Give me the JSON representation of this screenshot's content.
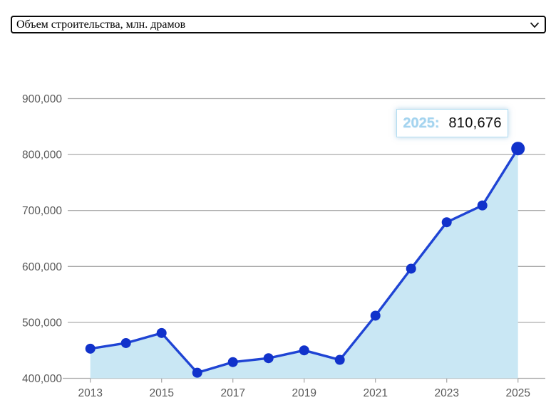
{
  "select": {
    "value": "Объем строительства, млн. драмов"
  },
  "tooltip": {
    "year_label": "2025:",
    "value": "810,676"
  },
  "colors": {
    "line": "#1f44d4",
    "point": "#1132cb",
    "area_fill": "#c9e7f4",
    "gridline": "#ababab",
    "axis_label": "#595959",
    "tooltip_border": "#b3def2",
    "tooltip_year": "#a4d4ef",
    "tooltip_value": "#0d0d0d",
    "select_border": "#0a0a0a"
  },
  "chart_data": {
    "type": "area",
    "title": "",
    "series_name": "Объем строительства, млн. драмов",
    "x": [
      2013,
      2014,
      2015,
      2016,
      2017,
      2018,
      2019,
      2020,
      2021,
      2022,
      2023,
      2024,
      2025
    ],
    "values": [
      453000,
      463000,
      481000,
      410000,
      429000,
      436000,
      450000,
      433000,
      512000,
      596000,
      679000,
      709000,
      810676
    ],
    "xlabel": "",
    "ylabel": "",
    "ylim": [
      400000,
      900000
    ],
    "ytick_values": [
      400000,
      500000,
      600000,
      700000,
      800000,
      900000
    ],
    "ytick_labels": [
      "400,000",
      "500,000",
      "600,000",
      "700,000",
      "800,000",
      "900,000"
    ],
    "xtick_years": [
      2013,
      2015,
      2017,
      2019,
      2021,
      2023,
      2025
    ],
    "xtick_labels": [
      "2013",
      "2015",
      "2017",
      "2019",
      "2021",
      "2023",
      "2025"
    ],
    "grid": true,
    "legend": "none",
    "highlight_point": {
      "year": 2025,
      "value_label": "810,676"
    }
  }
}
